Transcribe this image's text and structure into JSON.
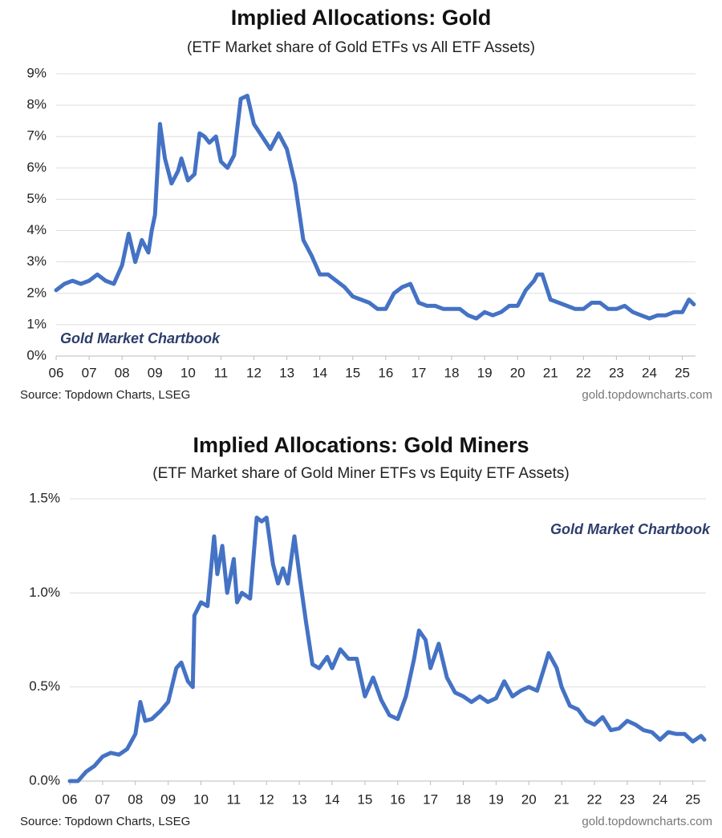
{
  "chart_data": [
    {
      "type": "line",
      "title": "Implied Allocations: Gold",
      "subtitle": "(ETF Market share of Gold ETFs vs All ETF Assets)",
      "source": "Source: Topdown Charts, LSEG",
      "website": "gold.topdowncharts.com",
      "annotation": "Gold Market Chartbook",
      "x": [
        2006.0,
        2006.25,
        2006.5,
        2006.75,
        2007.0,
        2007.25,
        2007.5,
        2007.75,
        2008.0,
        2008.2,
        2008.4,
        2008.6,
        2008.8,
        2008.9,
        2009.0,
        2009.15,
        2009.3,
        2009.5,
        2009.7,
        2009.8,
        2010.0,
        2010.2,
        2010.35,
        2010.5,
        2010.65,
        2010.85,
        2011.0,
        2011.2,
        2011.4,
        2011.6,
        2011.8,
        2012.0,
        2012.25,
        2012.5,
        2012.75,
        2013.0,
        2013.25,
        2013.5,
        2013.75,
        2014.0,
        2014.25,
        2014.5,
        2014.75,
        2015.0,
        2015.25,
        2015.5,
        2015.75,
        2016.0,
        2016.25,
        2016.5,
        2016.75,
        2017.0,
        2017.25,
        2017.5,
        2017.75,
        2018.0,
        2018.25,
        2018.5,
        2018.75,
        2019.0,
        2019.25,
        2019.5,
        2019.75,
        2020.0,
        2020.25,
        2020.5,
        2020.6,
        2020.75,
        2021.0,
        2021.25,
        2021.5,
        2021.75,
        2022.0,
        2022.25,
        2022.5,
        2022.75,
        2023.0,
        2023.25,
        2023.5,
        2023.75,
        2024.0,
        2024.25,
        2024.5,
        2024.75,
        2025.0,
        2025.2,
        2025.35
      ],
      "series": [
        {
          "name": "Gold",
          "color": "#4472c4",
          "values": [
            2.1,
            2.3,
            2.4,
            2.3,
            2.4,
            2.6,
            2.4,
            2.3,
            2.9,
            3.9,
            3.0,
            3.7,
            3.3,
            4.0,
            4.5,
            7.4,
            6.3,
            5.5,
            5.9,
            6.3,
            5.6,
            5.8,
            7.1,
            7.0,
            6.8,
            7.0,
            6.2,
            6.0,
            6.4,
            8.2,
            8.3,
            7.4,
            7.0,
            6.6,
            7.1,
            6.6,
            5.5,
            3.7,
            3.2,
            2.6,
            2.6,
            2.4,
            2.2,
            1.9,
            1.8,
            1.7,
            1.5,
            1.5,
            2.0,
            2.2,
            2.3,
            1.7,
            1.6,
            1.6,
            1.5,
            1.5,
            1.5,
            1.3,
            1.2,
            1.4,
            1.3,
            1.4,
            1.6,
            1.6,
            2.1,
            2.4,
            2.6,
            2.6,
            1.8,
            1.7,
            1.6,
            1.5,
            1.5,
            1.7,
            1.7,
            1.5,
            1.5,
            1.6,
            1.4,
            1.3,
            1.2,
            1.3,
            1.3,
            1.4,
            1.4,
            1.8,
            1.65
          ]
        }
      ],
      "xlim": [
        2006,
        2025.4
      ],
      "xticks": [
        {
          "value": 2006,
          "label": "06"
        },
        {
          "value": 2007,
          "label": "07"
        },
        {
          "value": 2008,
          "label": "08"
        },
        {
          "value": 2009,
          "label": "09"
        },
        {
          "value": 2010,
          "label": "10"
        },
        {
          "value": 2011,
          "label": "11"
        },
        {
          "value": 2012,
          "label": "12"
        },
        {
          "value": 2013,
          "label": "13"
        },
        {
          "value": 2014,
          "label": "14"
        },
        {
          "value": 2015,
          "label": "15"
        },
        {
          "value": 2016,
          "label": "16"
        },
        {
          "value": 2017,
          "label": "17"
        },
        {
          "value": 2018,
          "label": "18"
        },
        {
          "value": 2019,
          "label": "19"
        },
        {
          "value": 2020,
          "label": "20"
        },
        {
          "value": 2021,
          "label": "21"
        },
        {
          "value": 2022,
          "label": "22"
        },
        {
          "value": 2023,
          "label": "23"
        },
        {
          "value": 2024,
          "label": "24"
        },
        {
          "value": 2025,
          "label": "25"
        }
      ],
      "ylim": [
        0,
        9
      ],
      "yticks": [
        {
          "value": 0,
          "label": "0%"
        },
        {
          "value": 1,
          "label": "1%"
        },
        {
          "value": 2,
          "label": "2%"
        },
        {
          "value": 3,
          "label": "3%"
        },
        {
          "value": 4,
          "label": "4%"
        },
        {
          "value": 5,
          "label": "5%"
        },
        {
          "value": 6,
          "label": "6%"
        },
        {
          "value": 7,
          "label": "7%"
        },
        {
          "value": 8,
          "label": "8%"
        },
        {
          "value": 9,
          "label": "9%"
        }
      ],
      "grid": true
    },
    {
      "type": "line",
      "title": "Implied Allocations: Gold Miners",
      "subtitle": "(ETF Market share of Gold Miner ETFs vs Equity ETF Assets)",
      "source": "Source: Topdown Charts, LSEG",
      "website": "gold.topdowncharts.com",
      "annotation": "Gold Market Chartbook",
      "x": [
        2006.0,
        2006.25,
        2006.5,
        2006.75,
        2007.0,
        2007.25,
        2007.5,
        2007.75,
        2008.0,
        2008.15,
        2008.3,
        2008.5,
        2008.75,
        2009.0,
        2009.25,
        2009.4,
        2009.6,
        2009.75,
        2009.8,
        2010.0,
        2010.2,
        2010.4,
        2010.5,
        2010.65,
        2010.8,
        2011.0,
        2011.1,
        2011.25,
        2011.5,
        2011.7,
        2011.85,
        2012.0,
        2012.2,
        2012.35,
        2012.5,
        2012.65,
        2012.85,
        2013.0,
        2013.2,
        2013.4,
        2013.6,
        2013.85,
        2014.0,
        2014.25,
        2014.5,
        2014.75,
        2015.0,
        2015.25,
        2015.5,
        2015.75,
        2016.0,
        2016.25,
        2016.5,
        2016.65,
        2016.85,
        2017.0,
        2017.25,
        2017.5,
        2017.75,
        2018.0,
        2018.25,
        2018.5,
        2018.75,
        2019.0,
        2019.25,
        2019.5,
        2019.75,
        2020.0,
        2020.25,
        2020.5,
        2020.6,
        2020.85,
        2021.0,
        2021.25,
        2021.5,
        2021.75,
        2022.0,
        2022.25,
        2022.5,
        2022.75,
        2023.0,
        2023.25,
        2023.5,
        2023.75,
        2024.0,
        2024.25,
        2024.5,
        2024.75,
        2025.0,
        2025.25,
        2025.35
      ],
      "series": [
        {
          "name": "Gold Miners",
          "color": "#4472c4",
          "values": [
            0.0,
            0.0,
            0.05,
            0.08,
            0.13,
            0.15,
            0.14,
            0.17,
            0.25,
            0.42,
            0.32,
            0.33,
            0.37,
            0.42,
            0.6,
            0.63,
            0.53,
            0.5,
            0.88,
            0.95,
            0.93,
            1.3,
            1.1,
            1.25,
            1.0,
            1.18,
            0.95,
            1.0,
            0.97,
            1.4,
            1.38,
            1.4,
            1.15,
            1.05,
            1.13,
            1.05,
            1.3,
            1.1,
            0.85,
            0.62,
            0.6,
            0.66,
            0.6,
            0.7,
            0.65,
            0.65,
            0.45,
            0.55,
            0.43,
            0.35,
            0.33,
            0.45,
            0.65,
            0.8,
            0.75,
            0.6,
            0.73,
            0.55,
            0.47,
            0.45,
            0.42,
            0.45,
            0.42,
            0.44,
            0.53,
            0.45,
            0.48,
            0.5,
            0.48,
            0.62,
            0.68,
            0.6,
            0.5,
            0.4,
            0.38,
            0.32,
            0.3,
            0.34,
            0.27,
            0.28,
            0.32,
            0.3,
            0.27,
            0.26,
            0.22,
            0.26,
            0.25,
            0.25,
            0.21,
            0.24,
            0.22
          ]
        }
      ],
      "xlim": [
        2006,
        2025.4
      ],
      "xticks": [
        {
          "value": 2006,
          "label": "06"
        },
        {
          "value": 2007,
          "label": "07"
        },
        {
          "value": 2008,
          "label": "08"
        },
        {
          "value": 2009,
          "label": "09"
        },
        {
          "value": 2010,
          "label": "10"
        },
        {
          "value": 2011,
          "label": "11"
        },
        {
          "value": 2012,
          "label": "12"
        },
        {
          "value": 2013,
          "label": "13"
        },
        {
          "value": 2014,
          "label": "14"
        },
        {
          "value": 2015,
          "label": "15"
        },
        {
          "value": 2016,
          "label": "16"
        },
        {
          "value": 2017,
          "label": "17"
        },
        {
          "value": 2018,
          "label": "18"
        },
        {
          "value": 2019,
          "label": "19"
        },
        {
          "value": 2020,
          "label": "20"
        },
        {
          "value": 2021,
          "label": "21"
        },
        {
          "value": 2022,
          "label": "22"
        },
        {
          "value": 2023,
          "label": "23"
        },
        {
          "value": 2024,
          "label": "24"
        },
        {
          "value": 2025,
          "label": "25"
        }
      ],
      "ylim": [
        0,
        1.5
      ],
      "yticks": [
        {
          "value": 0,
          "label": "0.0%"
        },
        {
          "value": 0.5,
          "label": "0.5%"
        },
        {
          "value": 1,
          "label": "1.0%"
        },
        {
          "value": 1.5,
          "label": "1.5%"
        }
      ],
      "grid": true
    }
  ]
}
